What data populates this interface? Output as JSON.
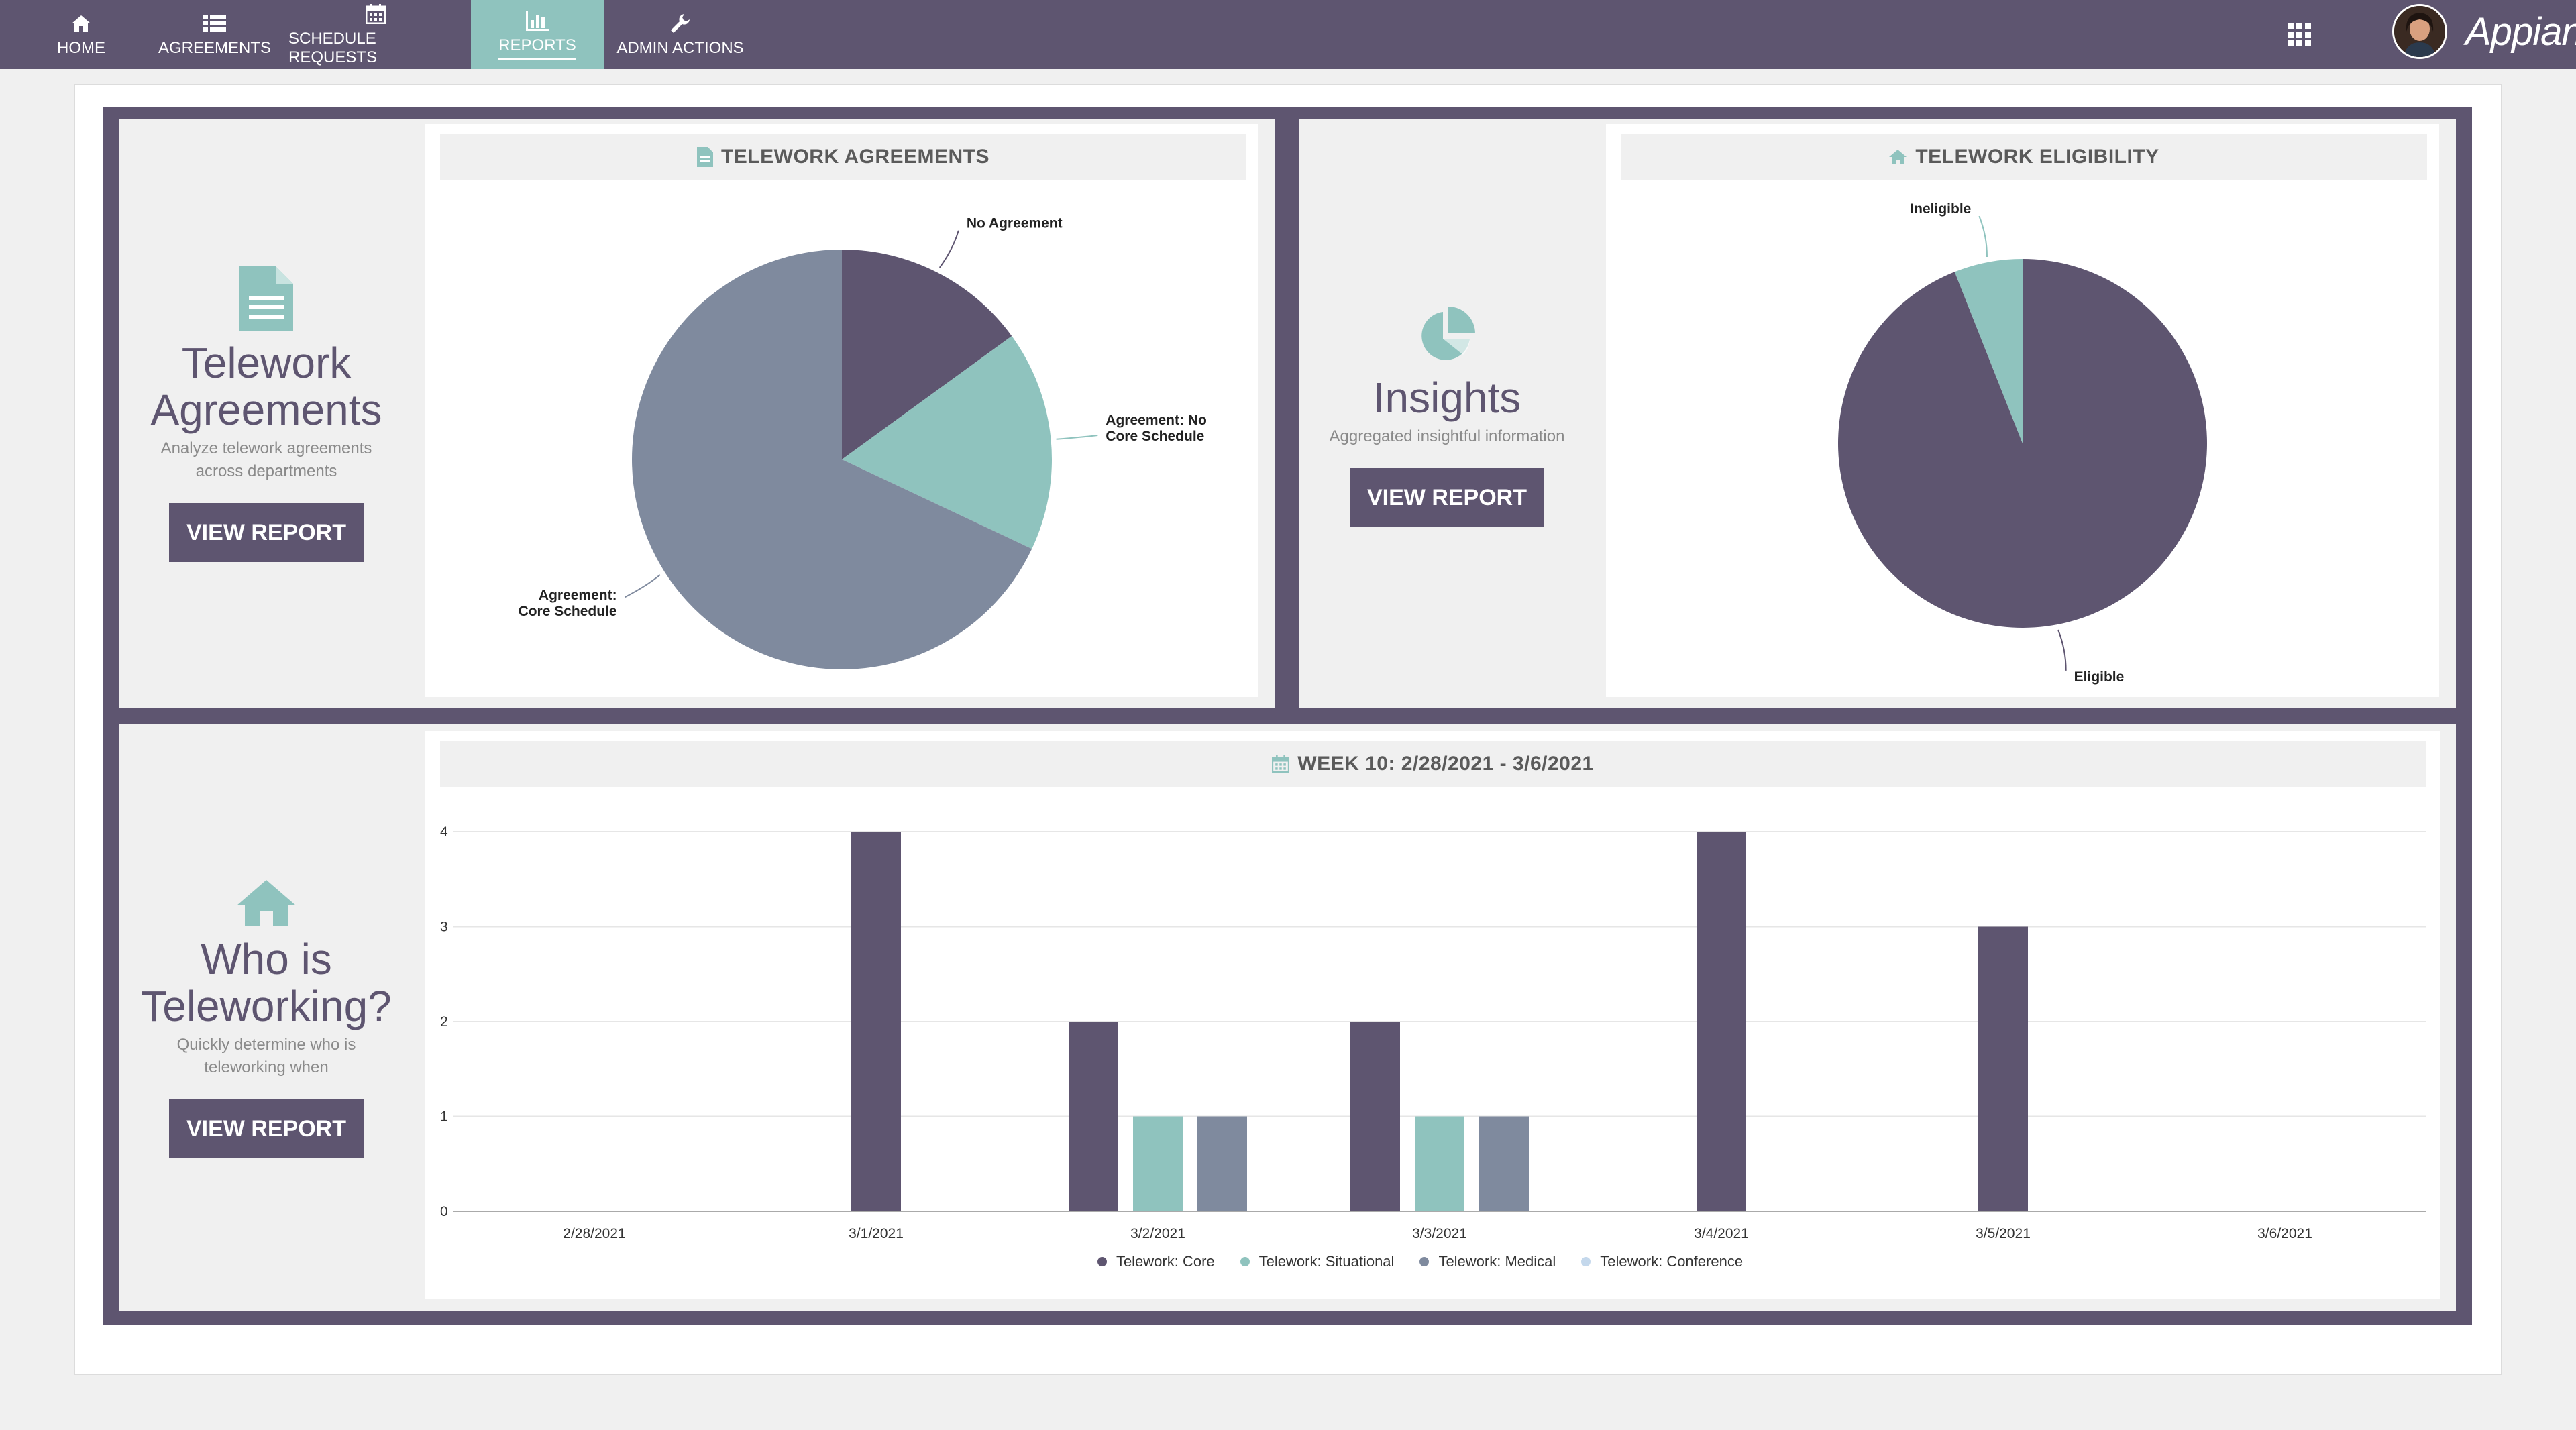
{
  "nav": {
    "items": [
      {
        "label": "HOME",
        "icon": "home-icon"
      },
      {
        "label": "AGREEMENTS",
        "icon": "list-icon"
      },
      {
        "label": "SCHEDULE REQUESTS",
        "icon": "calendar-icon"
      },
      {
        "label": "REPORTS",
        "icon": "bar-chart-icon",
        "active": true
      },
      {
        "label": "ADMIN ACTIONS",
        "icon": "wrench-icon"
      }
    ],
    "brand": "Appian"
  },
  "colors": {
    "primary": "#5e5570",
    "accent": "#8fc3be",
    "slate": "#7f8a9e",
    "light": "#c4d8ec"
  },
  "agreements_card": {
    "title_line1": "Telework",
    "title_line2": "Agreements",
    "subtitle_line1": "Analyze telework agreements",
    "subtitle_line2": "across departments",
    "button": "VIEW REPORT",
    "chart_header": "TELEWORK AGREEMENTS"
  },
  "insights_card": {
    "title": "Insights",
    "subtitle": "Aggregated insightful information",
    "button": "VIEW REPORT",
    "chart_header": "TELEWORK ELIGIBILITY"
  },
  "who_card": {
    "title_line1": "Who is",
    "title_line2": "Teleworking?",
    "subtitle_line1": "Quickly determine who is",
    "subtitle_line2": "teleworking when",
    "button": "VIEW REPORT",
    "chart_header": "WEEK 10: 2/28/2021 - 3/6/2021"
  },
  "chart_data": [
    {
      "type": "pie",
      "title": "TELEWORK AGREEMENTS",
      "slices": [
        {
          "label_lines": [
            "No Agreement"
          ],
          "value": 15,
          "color": "#5e5570"
        },
        {
          "label_lines": [
            "Agreement: No",
            "Core Schedule"
          ],
          "value": 17,
          "color": "#8fc3be"
        },
        {
          "label_lines": [
            "Agreement:",
            "Core Schedule"
          ],
          "value": 68,
          "color": "#7f8a9e"
        }
      ]
    },
    {
      "type": "pie",
      "title": "TELEWORK ELIGIBILITY",
      "slices": [
        {
          "label_lines": [
            "Eligible"
          ],
          "value": 94,
          "color": "#5e5570"
        },
        {
          "label_lines": [
            "Ineligible"
          ],
          "value": 6,
          "color": "#8fc3be"
        }
      ]
    },
    {
      "type": "bar",
      "title": "WEEK 10: 2/28/2021 - 3/6/2021",
      "categories": [
        "2/28/2021",
        "3/1/2021",
        "3/2/2021",
        "3/3/2021",
        "3/4/2021",
        "3/5/2021",
        "3/6/2021"
      ],
      "ylim": [
        0,
        4
      ],
      "yticks": [
        "0",
        "1",
        "2",
        "3",
        "4"
      ],
      "grid": true,
      "legend_position": "bottom",
      "series": [
        {
          "name": "Telework: Core",
          "color": "#5e5570",
          "values": [
            0,
            4,
            2,
            2,
            4,
            3,
            0
          ]
        },
        {
          "name": "Telework: Situational",
          "color": "#8fc3be",
          "values": [
            0,
            0,
            1,
            1,
            0,
            0,
            0
          ]
        },
        {
          "name": "Telework: Medical",
          "color": "#7f8a9e",
          "values": [
            0,
            0,
            1,
            1,
            0,
            0,
            0
          ]
        },
        {
          "name": "Telework: Conference",
          "color": "#c4d8ec",
          "values": [
            0,
            0,
            0,
            0,
            0,
            0,
            0
          ]
        }
      ]
    }
  ]
}
